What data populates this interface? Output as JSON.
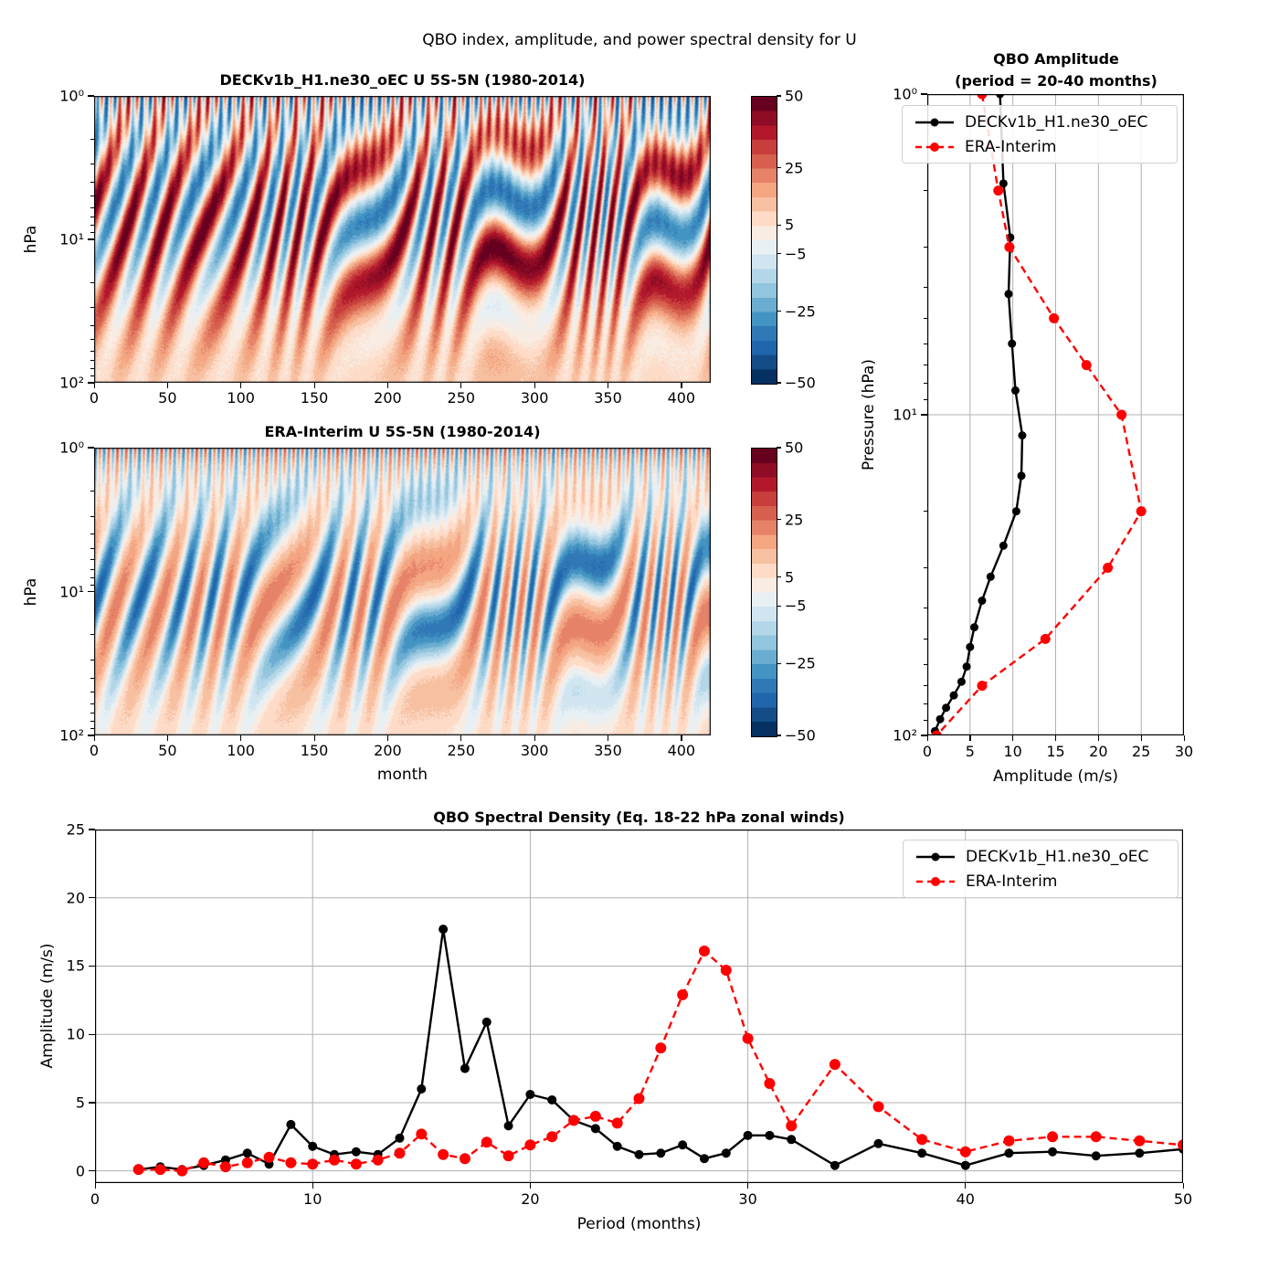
{
  "figure": {
    "title": "QBO index, amplitude, and power spectral density for U",
    "background": "#ffffff"
  },
  "colors": {
    "model_series": "#000000",
    "obs_series": "#ff0000",
    "grid": "#b0b0b0",
    "axis": "#000000",
    "legend_border": "#d0d0d0",
    "colormap_segments": [
      "#67001f",
      "#8e0c25",
      "#b2182b",
      "#c73e3c",
      "#d6604d",
      "#e58267",
      "#f4a582",
      "#f7c0a1",
      "#fddbc7",
      "#f9ece2",
      "#e8f0f4",
      "#d1e5f0",
      "#b3d6e8",
      "#92c5de",
      "#6bacd1",
      "#4393c3",
      "#3079b6",
      "#2166ac",
      "#134c87",
      "#053061"
    ]
  },
  "colorbar": {
    "vmin": -50,
    "vmax": 50,
    "ticks": [
      50,
      25,
      5,
      -5,
      -25,
      -50
    ]
  },
  "contour_top": {
    "title": "DECKv1b_H1.ne30_oEC U 5S-5N (1980-2014)",
    "ylabel": "hPa",
    "ytick_labels": [
      "10⁰",
      "10¹",
      "10²"
    ],
    "xticks": [
      0,
      50,
      100,
      150,
      200,
      250,
      300,
      350,
      400
    ]
  },
  "contour_bottom": {
    "title": "ERA-Interim U 5S-5N (1980-2014)",
    "ylabel": "hPa",
    "xlabel": "month",
    "ytick_labels": [
      "10⁰",
      "10¹",
      "10²"
    ],
    "xticks": [
      0,
      50,
      100,
      150,
      200,
      250,
      300,
      350,
      400
    ]
  },
  "amplitude_panel": {
    "title_line1": "QBO Amplitude",
    "title_line2": "(period = 20-40 months)",
    "xlabel": "Amplitude (m/s)",
    "ylabel": "Pressure (hPa)",
    "xticks": [
      0,
      5,
      10,
      15,
      20,
      25,
      30
    ],
    "ytick_labels": [
      "10⁰",
      "10¹",
      "10²"
    ]
  },
  "spectrum_panel": {
    "title": "QBO Spectral Density (Eq. 18-22 hPa zonal winds)",
    "xlabel": "Period (months)",
    "ylabel": "Amplitude (m/s)",
    "xticks": [
      0,
      10,
      20,
      30,
      40,
      50
    ],
    "yticks": [
      0,
      5,
      10,
      15,
      20,
      25
    ]
  },
  "chart_data": [
    {
      "type": "heatmap",
      "title": "DECKv1b_H1.ne30_oEC U 5S-5N (1980-2014)",
      "xlabel": "",
      "ylabel": "hPa",
      "x_range_months": [
        0,
        420
      ],
      "x_ticks": [
        0,
        50,
        100,
        150,
        200,
        250,
        300,
        350,
        400
      ],
      "y_scale": "log",
      "y_range_hpa": [
        1,
        100
      ],
      "y_ticks_hpa": [
        1,
        10,
        100
      ],
      "value_range_ms": [
        -50,
        50
      ],
      "colorbar_ticks": [
        50,
        25,
        5,
        -5,
        -25,
        -50
      ],
      "colormap": "RdBu_r (red = westerly wind, blue = easterly wind)",
      "description": "Monthly equatorial (5S-5N) zonal-mean zonal wind vs time and pressure for the model. Alternating westerly (red) and easterly (blue) QBO bands descend and tilt down-to-the-left with roughly a 26-28 month period; fast thin semiannual stripes near 1 hPa; broad light-red westerly dominance below ~30 hPa fading to pale near 100 hPa."
    },
    {
      "type": "heatmap",
      "title": "ERA-Interim U 5S-5N (1980-2014)",
      "xlabel": "month",
      "ylabel": "hPa",
      "x_range_months": [
        0,
        420
      ],
      "x_ticks": [
        0,
        50,
        100,
        150,
        200,
        250,
        300,
        350,
        400
      ],
      "y_scale": "log",
      "y_range_hpa": [
        1,
        100
      ],
      "y_ticks_hpa": [
        1,
        10,
        100
      ],
      "value_range_ms": [
        -50,
        50
      ],
      "colorbar_ticks": [
        50,
        25,
        5,
        -5,
        -25,
        -50
      ],
      "colormap": "RdBu_r (red = westerly wind, blue = easterly wind)",
      "description": "Monthly equatorial (5S-5N) zonal-mean zonal wind vs time and pressure for ERA-Interim reanalysis. Strong broad easterly (blue) QBO bands dominate between ~3 and ~50 hPa with ~28 month period, separated by weaker salmon westerlies; thin alternating stripes near 1 hPa; pale light-red layer near 100 hPa."
    },
    {
      "type": "line",
      "title": "QBO Amplitude (period = 20-40 months)",
      "xlabel": "Amplitude (m/s)",
      "ylabel": "Pressure (hPa)",
      "xlim": [
        0,
        30
      ],
      "x_ticks": [
        0,
        5,
        10,
        15,
        20,
        25,
        30
      ],
      "y_scale": "log",
      "ylim_hpa": [
        1,
        100
      ],
      "grid": true,
      "legend_position": "upper left",
      "series": [
        {
          "name": "DECKv1b_H1.ne30_oEC",
          "color": "#000000",
          "style": "solid",
          "marker": "circle",
          "pressure_hpa": [
            1.0,
            1.9,
            2.8,
            4.2,
            6.0,
            8.4,
            11.6,
            15.5,
            20,
            25.6,
            32,
            38,
            46,
            53,
            61,
            68,
            75,
            82,
            89,
            97
          ],
          "amplitude_ms": [
            8.5,
            8.9,
            9.7,
            9.5,
            9.9,
            10.3,
            11.1,
            11.0,
            10.4,
            8.9,
            7.4,
            6.4,
            5.5,
            5.0,
            4.6,
            4.0,
            3.1,
            2.2,
            1.5,
            0.9
          ]
        },
        {
          "name": "ERA-Interim",
          "color": "#ff0000",
          "style": "dashed",
          "marker": "circle",
          "pressure_hpa": [
            1,
            2,
            3,
            5,
            7,
            10,
            20,
            30,
            50,
            70,
            100
          ],
          "amplitude_ms": [
            6.4,
            8.3,
            9.6,
            14.8,
            18.6,
            22.7,
            25.0,
            21.1,
            13.8,
            6.4,
            1.1
          ]
        }
      ]
    },
    {
      "type": "line",
      "title": "QBO Spectral Density (Eq. 18-22 hPa zonal winds)",
      "xlabel": "Period (months)",
      "ylabel": "Amplitude (m/s)",
      "xlim": [
        0,
        50
      ],
      "ylim": [
        0,
        25
      ],
      "x_ticks": [
        0,
        10,
        20,
        30,
        40,
        50
      ],
      "y_ticks": [
        0,
        5,
        10,
        15,
        20,
        25
      ],
      "grid": true,
      "legend_position": "upper right",
      "periods_months": [
        2,
        3,
        4,
        5,
        6,
        7,
        8,
        9,
        10,
        11,
        12,
        13,
        14,
        15,
        16,
        17,
        18,
        19,
        20,
        21,
        22,
        23,
        24,
        25,
        26,
        27,
        28,
        29,
        30,
        31,
        32,
        34,
        36,
        38,
        40,
        42,
        44,
        46,
        48,
        50
      ],
      "series": [
        {
          "name": "DECKv1b_H1.ne30_oEC",
          "color": "#000000",
          "style": "solid",
          "marker": "circle",
          "amplitude_ms": [
            0.1,
            0.3,
            0.1,
            0.4,
            0.8,
            1.3,
            0.5,
            3.4,
            1.8,
            1.2,
            1.4,
            1.2,
            2.4,
            6.0,
            17.7,
            7.5,
            10.9,
            3.3,
            5.6,
            5.2,
            3.7,
            3.1,
            1.8,
            1.2,
            1.3,
            1.9,
            0.9,
            1.3,
            2.6,
            2.6,
            2.3,
            0.4,
            2.0,
            1.3,
            0.4,
            1.3,
            1.4,
            1.1,
            1.3,
            1.6
          ]
        },
        {
          "name": "ERA-Interim",
          "color": "#ff0000",
          "style": "dashed",
          "marker": "circle",
          "amplitude_ms": [
            0.1,
            0.1,
            0.0,
            0.6,
            0.3,
            0.6,
            1.0,
            0.6,
            0.5,
            0.8,
            0.5,
            0.8,
            1.3,
            2.7,
            1.2,
            0.9,
            2.1,
            1.1,
            1.9,
            2.5,
            3.7,
            4.0,
            3.5,
            5.3,
            9.0,
            12.9,
            16.1,
            14.7,
            9.7,
            6.4,
            3.3,
            7.8,
            4.7,
            2.3,
            1.4,
            2.2,
            2.5,
            2.5,
            2.2,
            1.9
          ]
        }
      ]
    }
  ],
  "sim": {
    "model": {
      "sao_amp": 34,
      "sao_period": 6.0,
      "sao_depth": 0.12,
      "sao_tilt": 6,
      "qbo_amp": 42,
      "qbo_period": 26,
      "qbo_center": 0.4,
      "qbo_width": 0.27,
      "tilt": 2.3,
      "pos_scale": 1.05,
      "neg_scale": 0.9,
      "bias_amp": 13,
      "bias_center": 0.74,
      "bias_width": 0.26,
      "noise": 4,
      "phase": 0.8
    },
    "obs": {
      "sao_amp": 30,
      "sao_period": 6.0,
      "sao_depth": 0.1,
      "sao_tilt": 6,
      "qbo_amp": 36,
      "qbo_period": 28,
      "qbo_center": 0.52,
      "qbo_width": 0.24,
      "tilt": 2.0,
      "pos_scale": 0.55,
      "neg_scale": 1.15,
      "bias_amp": 6,
      "bias_center": 0.82,
      "bias_width": 0.3,
      "noise": 3,
      "phase": 2.4
    }
  }
}
